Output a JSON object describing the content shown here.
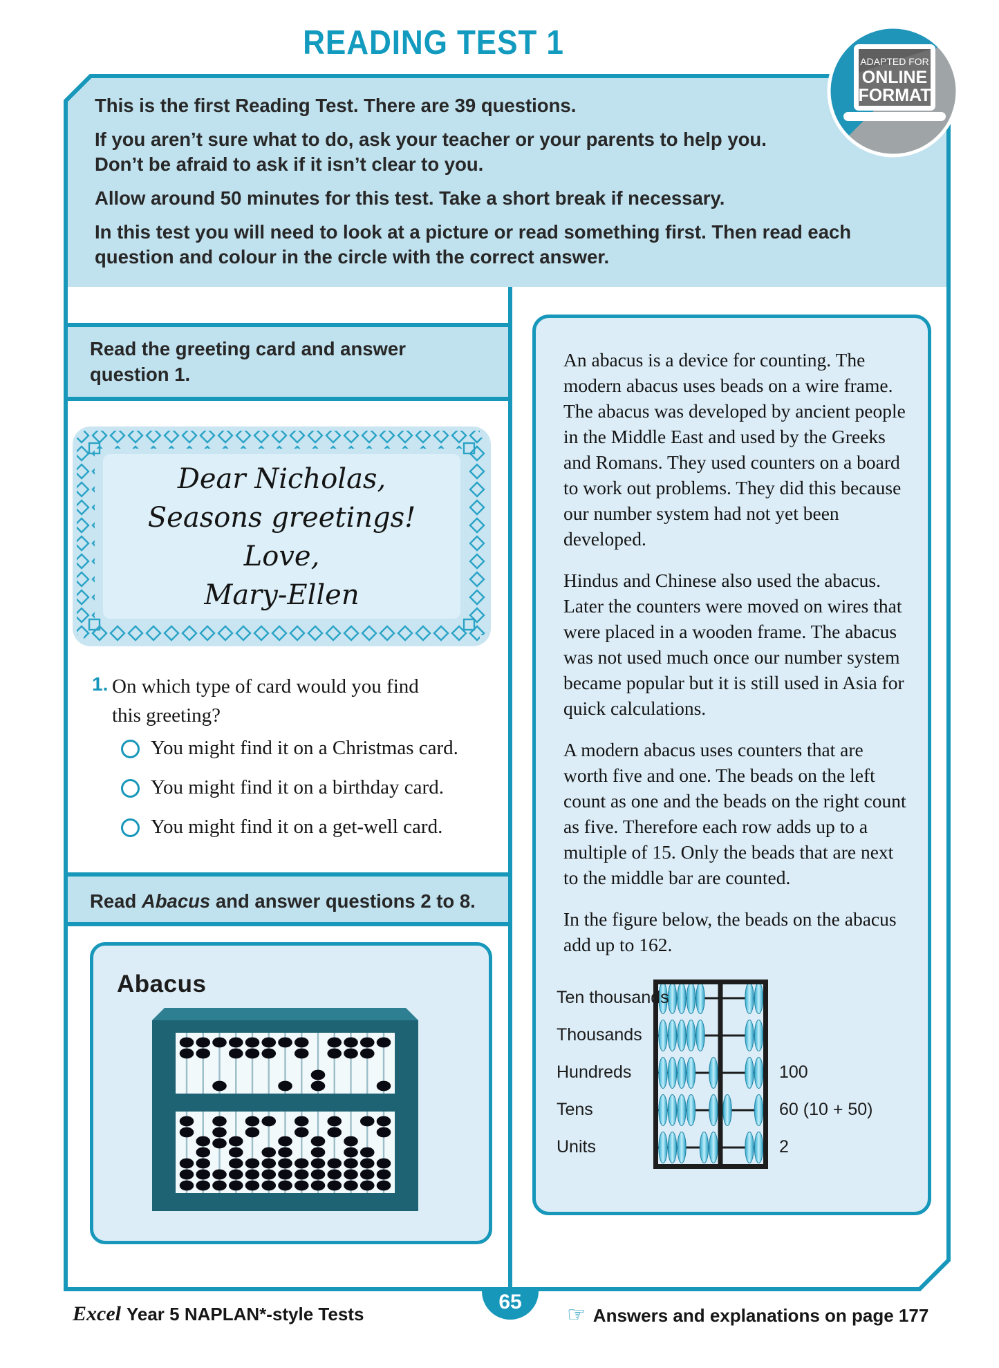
{
  "page_title": "READING TEST 1",
  "online_badge": {
    "line1": "ADAPTED FOR",
    "line2": "ONLINE",
    "line3": "FORMAT"
  },
  "instructions": [
    "This is the first Reading Test. There are 39 questions.",
    "If you aren’t sure what to do, ask your teacher or your parents to help you.\nDon’t be afraid to ask if it isn’t clear to you.",
    "Allow around 50 minutes for this test. Take a short break if necessary.",
    "In this test you will need to look at a picture or read something first. Then read each question and colour in the circle with the correct answer."
  ],
  "left_column": {
    "section1_header": "Read the greeting card and answer\nquestion 1.",
    "greeting_card_text": "Dear Nicholas,\nSeasons greetings!\nLove,\nMary-Ellen",
    "question1": {
      "number": "1.",
      "text": "On which type of card would you find this greeting?",
      "options": [
        "You might find it on a Christmas card.",
        "You might find it on a birthday card.",
        "You might find it on a get-well card."
      ]
    },
    "section2_header": {
      "pre": "Read ",
      "italic": "Abacus",
      "post": " and answer questions 2 to 8."
    },
    "abacus_box_title": "Abacus"
  },
  "right_column": {
    "paragraphs": [
      "An abacus is a device for counting. The modern abacus uses beads on a wire frame. The abacus was developed by ancient people in the Middle East and used by the Greeks and Romans. They used counters on a board to work out problems. They did this because our number system had not yet been developed.",
      "Hindus and Chinese also used the abacus. Later the counters were moved on wires that were placed in a wooden frame. The abacus was not used much once our number system became popular but it is still used in Asia for quick calculations.",
      "A modern abacus uses counters that are worth five and one. The beads on the left count as one and the beads on the right count as five. Therefore each row adds up to a multiple of 15. Only the beads that are next to the middle bar are counted.",
      "In the figure below, the beads on the abacus add up to 162."
    ]
  },
  "abacus_diagram": {
    "type": "diagram",
    "total_shown": "162",
    "rows": [
      {
        "label": "Ten thousands",
        "left_away": 5,
        "left_at_bar": 0,
        "right_at_bar": 0,
        "right_away": 2,
        "value": ""
      },
      {
        "label": "Thousands",
        "left_away": 5,
        "left_at_bar": 0,
        "right_at_bar": 0,
        "right_away": 2,
        "value": ""
      },
      {
        "label": "Hundreds",
        "left_away": 4,
        "left_at_bar": 1,
        "right_at_bar": 0,
        "right_away": 2,
        "value": "100"
      },
      {
        "label": "Tens",
        "left_away": 4,
        "left_at_bar": 1,
        "right_at_bar": 1,
        "right_away": 1,
        "value": "60 (10 + 50)"
      },
      {
        "label": "Units",
        "left_away": 3,
        "left_at_bar": 2,
        "right_at_bar": 0,
        "right_away": 2,
        "value": "2"
      }
    ]
  },
  "footer": {
    "left_italic": "Excel",
    "left_rest": "Year 5 NAPLAN*-style Tests",
    "page_number": "65",
    "hand_icon": "☞",
    "right_text": "Answers and explanations on page 177"
  },
  "colors": {
    "teal": "#1797ba",
    "title_teal": "#129bbe",
    "light_blue": "#c0e1ee",
    "pale_blue": "#dcedf7",
    "card_rim": "#c9e5f1",
    "card_inner": "#ddeff8",
    "bead_blue": "#4ec4e4",
    "diagram_frame": "#1d1d1d"
  }
}
